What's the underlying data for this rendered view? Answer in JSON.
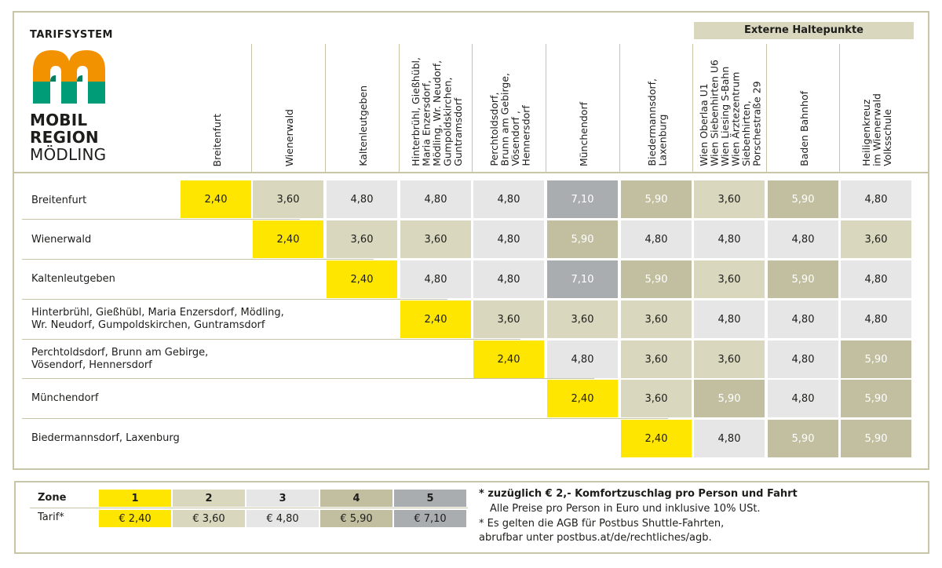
{
  "brand": {
    "system_label": "TARIFSYSTEM",
    "logo_line1": "MOBIL",
    "logo_line2": "REGION",
    "logo_line3": "MÖDLING",
    "logo_colors": {
      "orange": "#f39200",
      "teal": "#009b77"
    }
  },
  "external_header": "Externe Haltepunkte",
  "columns": [
    "Breitenfurt",
    "Wienerwald",
    "Kaltenleutgeben",
    "Hinterbrühl, Gießhübl,\nMaria Enzersdorf,\nMödling, Wr. Neudorf,\nGumpoldskirchen,\nGuntramsdorf",
    "Perchtoldsdorf,\nBrunn am Gebirge,\nVösendorf ,\nHennersdorf",
    "Münchendorf",
    "Biedermannsdorf,\nLaxenburg",
    "Wien Oberlaa U1\nWien Siebenhirten U6\nWien Liesing S-Bahn\nWien Ärztezentrum\nSiebenhirten,\nPorschestraße 29",
    "Baden Bahnhof",
    "Heiligenkreuz\nim Wienerwald\nVolksschule"
  ],
  "rows": [
    {
      "label": "Breitenfurt",
      "start": 0,
      "values": [
        "2,40",
        "3,60",
        "4,80",
        "4,80",
        "4,80",
        "7,10",
        "5,90",
        "3,60",
        "5,90",
        "4,80"
      ],
      "zones": [
        1,
        2,
        3,
        3,
        3,
        5,
        4,
        2,
        4,
        3
      ]
    },
    {
      "label": "Wienerwald",
      "start": 1,
      "values": [
        "2,40",
        "3,60",
        "3,60",
        "4,80",
        "5,90",
        "4,80",
        "4,80",
        "4,80",
        "3,60"
      ],
      "zones": [
        1,
        2,
        2,
        3,
        4,
        3,
        3,
        3,
        2
      ]
    },
    {
      "label": "Kaltenleutgeben",
      "start": 2,
      "values": [
        "2,40",
        "4,80",
        "4,80",
        "7,10",
        "5,90",
        "3,60",
        "5,90",
        "4,80"
      ],
      "zones": [
        1,
        3,
        3,
        5,
        4,
        2,
        4,
        3
      ]
    },
    {
      "label": "Hinterbrühl, Gießhübl, Maria Enzersdorf, Mödling,\nWr. Neudorf, Gumpoldskirchen, Guntramsdorf",
      "start": 3,
      "values": [
        "2,40",
        "3,60",
        "3,60",
        "3,60",
        "4,80",
        "4,80",
        "4,80"
      ],
      "zones": [
        1,
        2,
        2,
        2,
        3,
        3,
        3
      ]
    },
    {
      "label": "Perchtoldsdorf, Brunn am Gebirge,\nVösendorf, Hennersdorf",
      "start": 4,
      "values": [
        "2,40",
        "4,80",
        "3,60",
        "3,60",
        "4,80",
        "5,90"
      ],
      "zones": [
        1,
        3,
        2,
        2,
        3,
        4
      ]
    },
    {
      "label": "Münchendorf",
      "start": 5,
      "values": [
        "2,40",
        "3,60",
        "5,90",
        "4,80",
        "5,90"
      ],
      "zones": [
        1,
        2,
        4,
        3,
        4
      ]
    },
    {
      "label": "Biedermannsdorf, Laxenburg",
      "start": 6,
      "values": [
        "2,40",
        "4,80",
        "5,90",
        "5,90"
      ],
      "zones": [
        1,
        3,
        4,
        4
      ]
    }
  ],
  "legend": {
    "zone_label": "Zone",
    "tarif_label": "Tarif*",
    "zones": [
      "1",
      "2",
      "3",
      "4",
      "5"
    ],
    "prices": [
      "€ 2,40",
      "€ 3,60",
      "€ 4,80",
      "€ 5,90",
      "€ 7,10"
    ]
  },
  "notes": {
    "surcharge": "* zuzüglich € 2,- Komfortzuschlag pro Person und Fahrt",
    "prices_info": "Alle Preise pro Person in Euro und inklusive 10% USt.",
    "agb": "* Es gelten die AGB für Postbus Shuttle-Fahrten,\n   abrufbar unter postbus.at/de/rechtliches/agb."
  },
  "zone_colors": {
    "1": "#ffe600",
    "2": "#d9d7bd",
    "3": "#e6e6e6",
    "4": "#c1bfa0",
    "5": "#a9adb0"
  }
}
